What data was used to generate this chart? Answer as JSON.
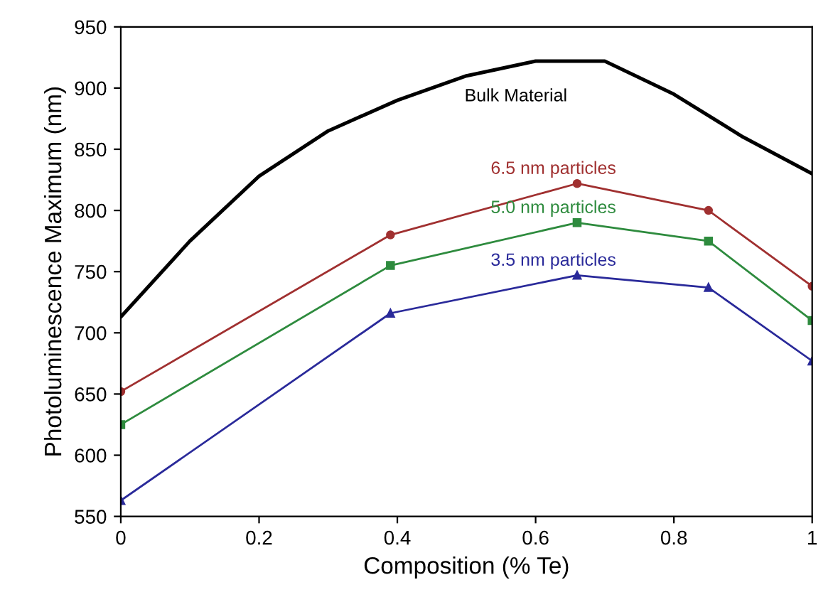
{
  "chart_data": {
    "type": "line",
    "xlabel": "Composition (% Te)",
    "ylabel": "Photoluminescence Maximum (nm)",
    "xlim": [
      0,
      1
    ],
    "xticks": [
      0,
      0.2,
      0.4,
      0.6,
      0.8,
      1
    ],
    "ylim": [
      550,
      950
    ],
    "yticks": [
      550,
      600,
      650,
      700,
      750,
      800,
      850,
      900,
      950
    ],
    "grid": false,
    "legend": false,
    "series": [
      {
        "name": "Bulk Material",
        "color": "#000000",
        "marker": "none",
        "x": [
          0,
          0.1,
          0.2,
          0.3,
          0.4,
          0.5,
          0.6,
          0.7,
          0.8,
          0.9,
          1
        ],
        "values": [
          713,
          775,
          828,
          865,
          890,
          910,
          922,
          922,
          895,
          860,
          830
        ]
      },
      {
        "name": "6.5 nm particles",
        "color": "#a03030",
        "marker": "circle",
        "x": [
          0,
          0.39,
          0.66,
          0.85,
          1
        ],
        "values": [
          652,
          780,
          822,
          800,
          738
        ]
      },
      {
        "name": "5.0 nm particles",
        "color": "#2e8b3e",
        "marker": "square",
        "x": [
          0,
          0.39,
          0.66,
          0.85,
          1
        ],
        "values": [
          625,
          755,
          790,
          775,
          710
        ]
      },
      {
        "name": "3.5 nm particles",
        "color": "#2a2a9a",
        "marker": "triangle",
        "x": [
          0,
          0.39,
          0.66,
          0.85,
          1
        ],
        "values": [
          563,
          716,
          747,
          737,
          677
        ]
      }
    ]
  }
}
